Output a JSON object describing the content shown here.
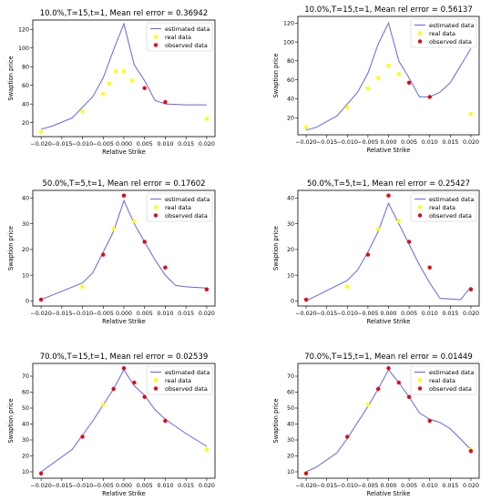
{
  "colors": {
    "estimated": "#6464ee",
    "real": "#ffff00",
    "observed": "#e8001c"
  },
  "chart_data": [
    {
      "type": "line",
      "title": "10.0%,T=15,t=1, Mean rel error = 0.36942",
      "xlabel": "Relative Strike",
      "ylabel": "Swaption price",
      "xlim": [
        -0.022,
        0.022
      ],
      "ylim": [
        5,
        130
      ],
      "xticks": [
        -0.02,
        -0.015,
        -0.01,
        -0.005,
        0.0,
        0.005,
        0.01,
        0.015,
        0.02
      ],
      "xtick_labels": [
        "−0.020",
        "−0.015",
        "−0.010",
        "−0.005",
        "0.000",
        "0.005",
        "0.010",
        "0.015",
        "0.020"
      ],
      "yticks": [
        20,
        40,
        60,
        80,
        100,
        120
      ],
      "legend": [
        "estimated data",
        "real data",
        "observed data"
      ],
      "legend_loc": "upper right",
      "estimated": {
        "x": [
          -0.02,
          -0.0175,
          -0.0125,
          -0.0075,
          -0.005,
          -0.0025,
          0.0,
          0.0025,
          0.005,
          0.0075,
          0.01,
          0.015,
          0.02
        ],
        "y": [
          13,
          16,
          25,
          48,
          68,
          98,
          126,
          82,
          65,
          44,
          40,
          39,
          39
        ]
      },
      "real": {
        "x": [
          -0.02,
          -0.01,
          -0.005,
          -0.0035,
          -0.002,
          0.0,
          0.002,
          0.005,
          0.01,
          0.02
        ],
        "y": [
          10,
          32,
          51,
          62,
          75,
          75,
          65,
          57,
          42,
          24
        ]
      },
      "observed": {
        "x": [
          0.005,
          0.01
        ],
        "y": [
          57,
          42
        ]
      }
    },
    {
      "type": "line",
      "title": "10.0%,T=15,t=1, Mean rel error = 0.56137",
      "xlabel": "Relative Strike",
      "ylabel": "Swaption price",
      "xlim": [
        -0.022,
        0.022
      ],
      "ylim": [
        2,
        127
      ],
      "xticks": [
        -0.02,
        -0.015,
        -0.01,
        -0.005,
        0.0,
        0.005,
        0.01,
        0.015,
        0.02
      ],
      "xtick_labels": [
        "−0.020",
        "−0.015",
        "−0.010",
        "−0.005",
        "0.000",
        "0.005",
        "0.010",
        "0.015",
        "0.020"
      ],
      "yticks": [
        20,
        40,
        60,
        80,
        100,
        120
      ],
      "legend": [
        "estimated data",
        "real data",
        "observed data"
      ],
      "legend_loc": "upper right",
      "estimated": {
        "x": [
          -0.02,
          -0.0175,
          -0.0125,
          -0.0075,
          -0.005,
          -0.0025,
          0.0,
          0.0025,
          0.005,
          0.0075,
          0.01,
          0.0125,
          0.015,
          0.02
        ],
        "y": [
          7,
          10,
          22,
          47,
          67,
          98,
          120,
          80,
          62,
          42,
          42,
          47,
          57,
          93
        ]
      },
      "real": {
        "x": [
          -0.02,
          -0.01,
          -0.005,
          -0.0025,
          0.0,
          0.0025,
          0.005,
          0.01,
          0.02
        ],
        "y": [
          10,
          31,
          51,
          62,
          75,
          66,
          57,
          42,
          24
        ]
      },
      "observed": {
        "x": [
          0.005,
          0.01
        ],
        "y": [
          57,
          42
        ]
      }
    },
    {
      "type": "line",
      "title": "50.0%,T=5,t=1, Mean rel error = 0.17602",
      "xlabel": "Relative Strike",
      "ylabel": "Swaption price",
      "xlim": [
        -0.022,
        0.022
      ],
      "ylim": [
        -2,
        43
      ],
      "xticks": [
        -0.02,
        -0.015,
        -0.01,
        -0.005,
        0.0,
        0.005,
        0.01,
        0.015,
        0.02
      ],
      "xtick_labels": [
        "−0.020",
        "−0.015",
        "−0.010",
        "−0.005",
        "0.000",
        "0.005",
        "0.010",
        "0.015",
        "0.020"
      ],
      "yticks": [
        0,
        10,
        20,
        30,
        40
      ],
      "legend": [
        "estimated data",
        "real data",
        "observed data"
      ],
      "legend_loc": "upper right",
      "estimated": {
        "x": [
          -0.02,
          -0.01,
          -0.0075,
          -0.005,
          -0.0025,
          0.0,
          0.0025,
          0.005,
          0.0075,
          0.01,
          0.0125,
          0.015,
          0.02
        ],
        "y": [
          0.5,
          7,
          11,
          19,
          27,
          39,
          30,
          23,
          16,
          10,
          6,
          5.5,
          5
        ]
      },
      "real": {
        "x": [
          -0.02,
          -0.01,
          -0.005,
          -0.0025,
          0.0,
          0.0025,
          0.005,
          0.01,
          0.02
        ],
        "y": [
          0.5,
          5.5,
          18,
          28,
          41,
          31,
          23,
          13,
          4.5
        ]
      },
      "observed": {
        "x": [
          -0.02,
          -0.005,
          0.0,
          0.005,
          0.01,
          0.02
        ],
        "y": [
          0.5,
          18,
          41,
          23,
          13,
          4.5
        ]
      }
    },
    {
      "type": "line",
      "title": "50.0%,T=5,t=1, Mean rel error = 0.25427",
      "xlabel": "Relative Strike",
      "ylabel": "Swaption price",
      "xlim": [
        -0.022,
        0.022
      ],
      "ylim": [
        -2,
        43
      ],
      "xticks": [
        -0.02,
        -0.015,
        -0.01,
        -0.005,
        0.0,
        0.005,
        0.01,
        0.015,
        0.02
      ],
      "xtick_labels": [
        "−0.020",
        "−0.015",
        "−0.010",
        "−0.005",
        "0.000",
        "0.005",
        "0.010",
        "0.015",
        "0.020"
      ],
      "yticks": [
        0,
        10,
        20,
        30,
        40
      ],
      "legend": [
        "estimated data",
        "real data",
        "observed data"
      ],
      "legend_loc": "upper right",
      "estimated": {
        "x": [
          -0.02,
          -0.01,
          -0.0075,
          -0.005,
          -0.0025,
          0.0,
          0.0025,
          0.005,
          0.0075,
          0.01,
          0.0125,
          0.0175,
          0.02
        ],
        "y": [
          0,
          8,
          12,
          19,
          27,
          38,
          30,
          22,
          14,
          7,
          1,
          0.5,
          5.5
        ]
      },
      "real": {
        "x": [
          -0.02,
          -0.01,
          -0.005,
          -0.0025,
          0.0,
          0.0025,
          0.005,
          0.01,
          0.02
        ],
        "y": [
          0.5,
          5.5,
          18,
          28,
          41,
          31,
          23,
          13,
          4.5
        ]
      },
      "observed": {
        "x": [
          -0.02,
          -0.005,
          0.0,
          0.005,
          0.01,
          0.02
        ],
        "y": [
          0.5,
          18,
          41,
          23,
          13,
          4.5
        ]
      }
    },
    {
      "type": "line",
      "title": "70.0%,T=15,t=1, Mean rel error = 0.02539",
      "xlabel": "Relative Strike",
      "ylabel": "Swaption price",
      "xlim": [
        -0.022,
        0.022
      ],
      "ylim": [
        6,
        78
      ],
      "xticks": [
        -0.02,
        -0.015,
        -0.01,
        -0.005,
        0.0,
        0.005,
        0.01,
        0.015,
        0.02
      ],
      "xtick_labels": [
        "−0.020",
        "−0.015",
        "−0.010",
        "−0.005",
        "0.000",
        "0.005",
        "0.010",
        "0.015",
        "0.020"
      ],
      "yticks": [
        10,
        20,
        30,
        40,
        50,
        60,
        70
      ],
      "legend": [
        "estimated data",
        "real data",
        "observed data"
      ],
      "legend_loc": "upper right",
      "estimated": {
        "x": [
          -0.02,
          -0.0125,
          -0.01,
          -0.0075,
          -0.005,
          -0.0025,
          0.0,
          0.0025,
          0.005,
          0.0075,
          0.01,
          0.015,
          0.02
        ],
        "y": [
          10,
          24,
          33,
          42,
          52,
          62,
          74,
          64,
          58,
          49,
          43,
          34,
          26
        ]
      },
      "real": {
        "x": [
          -0.02,
          -0.01,
          -0.005,
          -0.0025,
          0.0,
          0.0025,
          0.005,
          0.01,
          0.02
        ],
        "y": [
          9,
          32,
          52,
          62,
          75,
          66,
          57,
          42,
          24
        ]
      },
      "observed": {
        "x": [
          -0.02,
          -0.01,
          -0.0025,
          0.0,
          0.0025,
          0.005,
          0.01
        ],
        "y": [
          9,
          32,
          62,
          75,
          66,
          57,
          42
        ]
      }
    },
    {
      "type": "line",
      "title": "70.0%,T=15,t=1, Mean rel error = 0.01449",
      "xlabel": "Relative Strike",
      "ylabel": "Swaption price",
      "xlim": [
        -0.022,
        0.022
      ],
      "ylim": [
        6,
        78
      ],
      "xticks": [
        -0.02,
        -0.015,
        -0.01,
        -0.005,
        0.0,
        0.005,
        0.01,
        0.015,
        0.02
      ],
      "xtick_labels": [
        "−0.020",
        "−0.015",
        "−0.010",
        "−0.005",
        "0.000",
        "0.005",
        "0.010",
        "0.015",
        "0.020"
      ],
      "yticks": [
        10,
        20,
        30,
        40,
        50,
        60,
        70
      ],
      "legend": [
        "estimated data",
        "real data",
        "observed data"
      ],
      "legend_loc": "upper right",
      "estimated": {
        "x": [
          -0.02,
          -0.0175,
          -0.0125,
          -0.01,
          -0.0075,
          -0.005,
          -0.0025,
          0.0,
          0.0025,
          0.005,
          0.0075,
          0.01,
          0.0125,
          0.015,
          0.02
        ],
        "y": [
          10,
          13,
          22,
          31,
          41,
          51,
          62,
          74,
          66,
          57,
          47,
          43,
          41,
          37,
          24
        ]
      },
      "real": {
        "x": [
          -0.02,
          -0.01,
          -0.005,
          -0.0025,
          0.0,
          0.0025,
          0.005,
          0.01,
          0.02
        ],
        "y": [
          9,
          32,
          52,
          62,
          75,
          66,
          57,
          42,
          24
        ]
      },
      "observed": {
        "x": [
          -0.02,
          -0.01,
          -0.0025,
          0.0,
          0.0025,
          0.005,
          0.01,
          0.02
        ],
        "y": [
          9,
          32,
          62,
          75,
          66,
          57,
          42,
          23
        ]
      }
    }
  ]
}
